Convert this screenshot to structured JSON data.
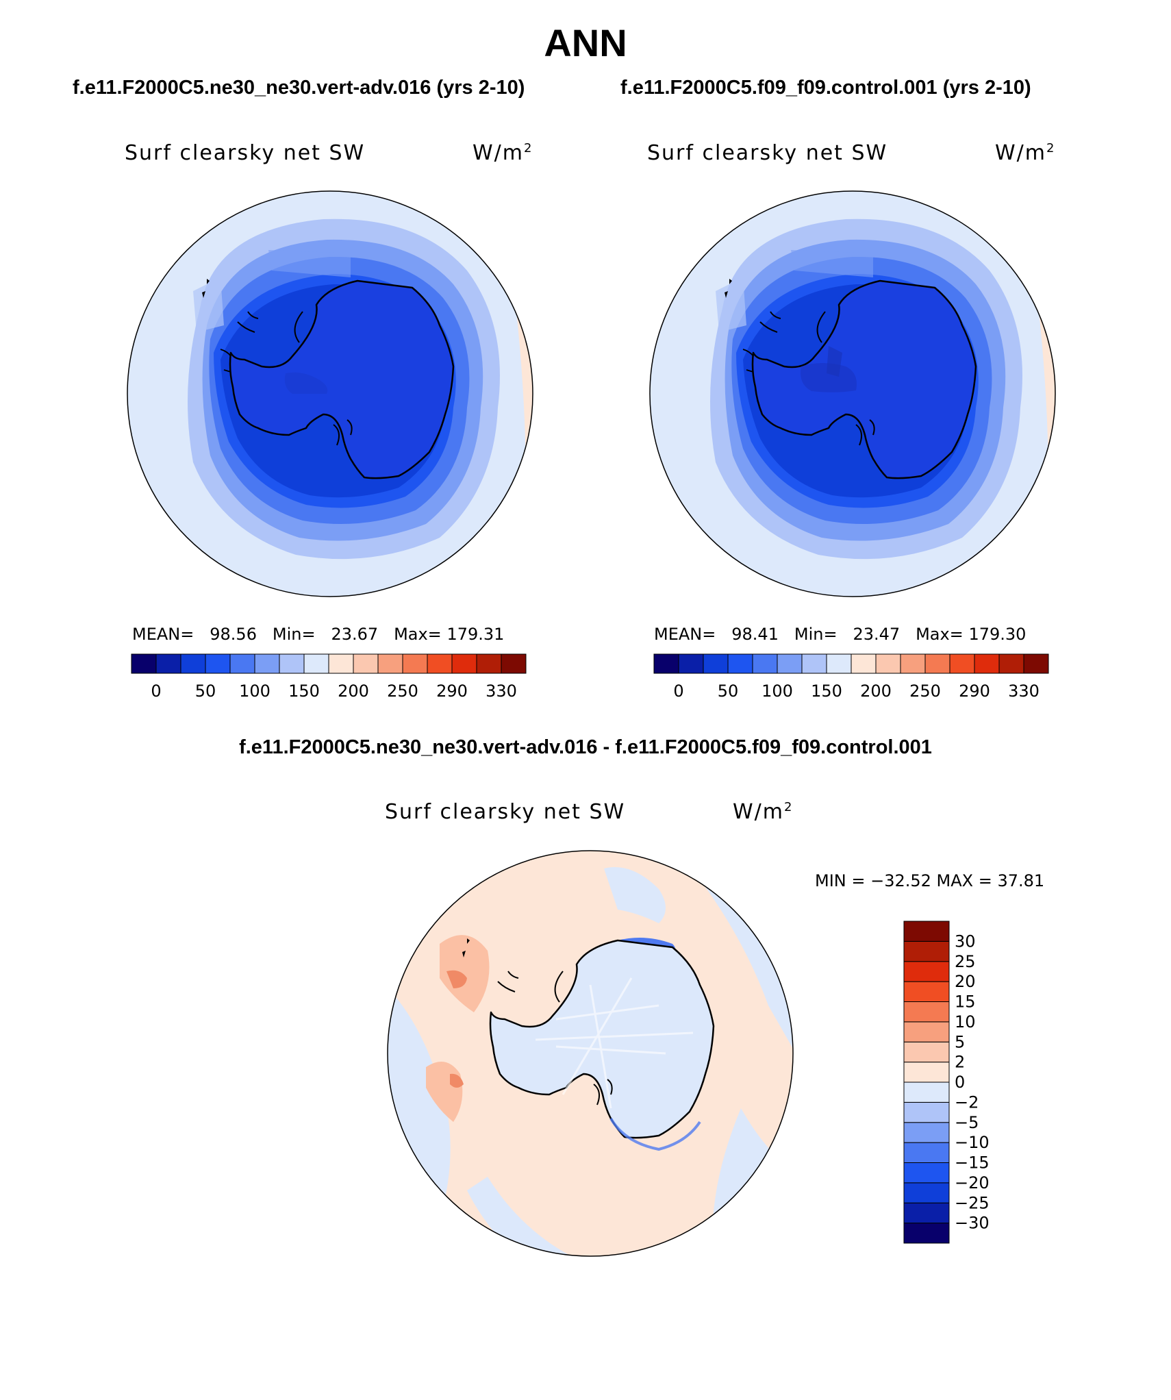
{
  "title": "ANN",
  "panels": [
    {
      "case_title": "f.e11.F2000C5.ne30_ne30.vert-adv.016 (yrs 2-10)",
      "variable": "Surf clearsky net SW",
      "units_base": "W/m",
      "units_exp": "2",
      "stats": {
        "mean_label": "MEAN=",
        "mean": "98.56",
        "min_label": "Min=",
        "min": "23.67",
        "max_label": "Max=",
        "max": "179.31"
      }
    },
    {
      "case_title": "f.e11.F2000C5.f09_f09.control.001 (yrs 2-10)",
      "variable": "Surf clearsky net SW",
      "units_base": "W/m",
      "units_exp": "2",
      "stats": {
        "mean_label": "MEAN=",
        "mean": "98.41",
        "min_label": "Min=",
        "min": "23.47",
        "max_label": "Max=",
        "max": "179.30"
      }
    }
  ],
  "difference": {
    "title": "f.e11.F2000C5.ne30_ne30.vert-adv.016 - f.e11.F2000C5.f09_f09.control.001",
    "variable": "Surf clearsky net SW",
    "units_base": "W/m",
    "units_exp": "2",
    "minmax": "MIN = −32.52 MAX =  37.81"
  },
  "colorbar_abs": {
    "colors": [
      "#08006b",
      "#0a1fa8",
      "#0f3fd9",
      "#1e55f0",
      "#4a78f2",
      "#7b9ef5",
      "#afc4f8",
      "#dde9fb",
      "#fde6d7",
      "#fbc8b0",
      "#f7a07e",
      "#f47a52",
      "#f04e23",
      "#df2c0c",
      "#b01e06",
      "#7d0a02"
    ],
    "tick_labels": [
      "0",
      "50",
      "100",
      "150",
      "200",
      "250",
      "290",
      "330"
    ]
  },
  "colorbar_diff": {
    "colors": [
      "#08006b",
      "#0a1fa8",
      "#0f3fd9",
      "#1e55f0",
      "#4a78f2",
      "#7b9ef5",
      "#afc4f8",
      "#dde9fb",
      "#fde6d7",
      "#fbc8b0",
      "#f7a07e",
      "#f47a52",
      "#f04e23",
      "#df2c0c",
      "#b01e06",
      "#7d0a02"
    ],
    "tick_labels": [
      "−30",
      "−25",
      "−20",
      "−15",
      "−10",
      "−5",
      "−2",
      "0",
      "2",
      "5",
      "10",
      "15",
      "20",
      "25",
      "30"
    ]
  },
  "field_colors": {
    "land_abs": "#1a40e0",
    "diff_bg_blue": "#dce8fb",
    "diff_bg_red": "#fde6d7",
    "diff_red_mid": "#fbc0a4",
    "diff_red_strong": "#f08a66",
    "diff_blue_strong": "#4f7af0"
  }
}
